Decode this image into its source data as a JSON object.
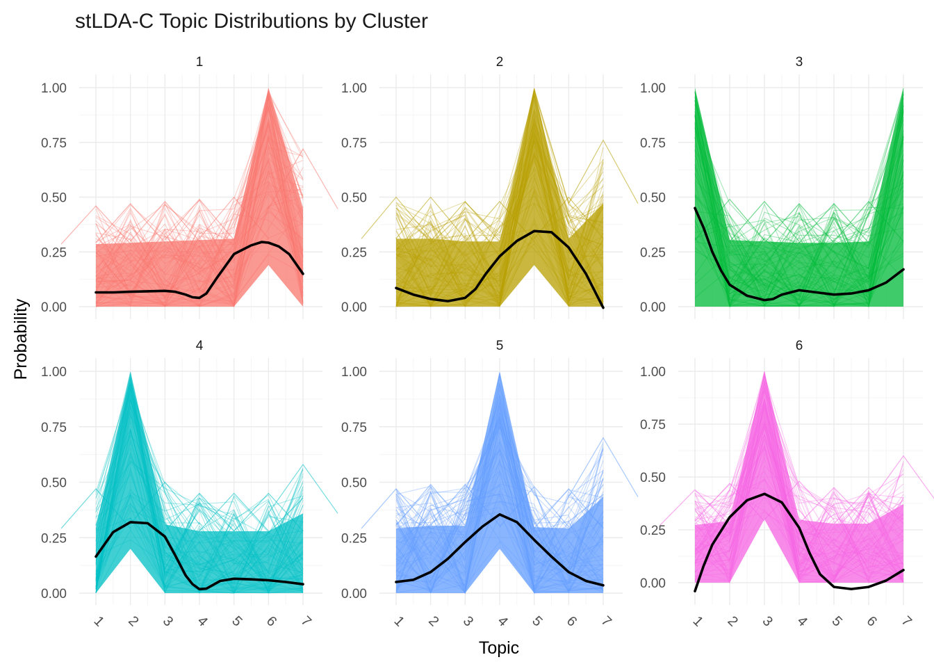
{
  "chart_data": {
    "type": "line",
    "title": "stLDA-C Topic Distributions by Cluster",
    "xlabel": "Topic",
    "ylabel": "Probability",
    "x_ticks": [
      "1",
      "2",
      "3",
      "4",
      "5",
      "6",
      "7"
    ],
    "y_ticks": [
      "0.00",
      "0.25",
      "0.50",
      "0.75",
      "1.00"
    ],
    "grid": true,
    "legend": "none",
    "facets": [
      {
        "cluster": "1",
        "color": "#F8766D",
        "ylim": [
          0,
          1
        ],
        "band_max": [
          0.46,
          0.47,
          0.48,
          0.49,
          0.5,
          1.0,
          0.72
        ],
        "band_min": [
          0.0,
          0.0,
          0.0,
          0.0,
          0.0,
          0.19,
          0.0
        ],
        "smooth": {
          "x": [
            1,
            1.5,
            2,
            2.5,
            3,
            3.3,
            3.6,
            3.8,
            4,
            4.2,
            4.5,
            5,
            5.5,
            5.8,
            6,
            6.3,
            6.6,
            7
          ],
          "y": [
            0.065,
            0.065,
            0.068,
            0.07,
            0.072,
            0.068,
            0.055,
            0.043,
            0.04,
            0.06,
            0.13,
            0.24,
            0.28,
            0.295,
            0.292,
            0.275,
            0.24,
            0.15
          ]
        }
      },
      {
        "cluster": "2",
        "color": "#B79F00",
        "ylim": [
          0,
          1
        ],
        "band_max": [
          0.5,
          0.5,
          0.48,
          0.48,
          1.0,
          0.5,
          0.76
        ],
        "band_min": [
          0.0,
          0.0,
          0.0,
          0.0,
          0.19,
          0.0,
          0.0
        ],
        "smooth": {
          "x": [
            1,
            1.5,
            2,
            2.5,
            3,
            3.3,
            3.6,
            4,
            4.5,
            5,
            5.5,
            6,
            6.5,
            7
          ],
          "y": [
            0.085,
            0.055,
            0.035,
            0.025,
            0.04,
            0.08,
            0.15,
            0.23,
            0.3,
            0.345,
            0.34,
            0.27,
            0.15,
            -0.005
          ]
        }
      },
      {
        "cluster": "3",
        "color": "#00BA38",
        "ylim": [
          0,
          1
        ],
        "band_max": [
          1.0,
          0.49,
          0.48,
          0.47,
          0.47,
          0.48,
          1.0
        ],
        "band_min": [
          0.0,
          0.0,
          0.0,
          0.0,
          0.0,
          0.0,
          0.0
        ],
        "smooth": {
          "x": [
            1,
            1.25,
            1.5,
            1.75,
            2,
            2.5,
            3,
            3.25,
            3.5,
            4,
            4.5,
            5,
            5.5,
            6,
            6.5,
            7
          ],
          "y": [
            0.45,
            0.36,
            0.25,
            0.165,
            0.1,
            0.05,
            0.03,
            0.035,
            0.055,
            0.075,
            0.065,
            0.055,
            0.06,
            0.075,
            0.11,
            0.17
          ]
        }
      },
      {
        "cluster": "4",
        "color": "#00BFC4",
        "ylim": [
          0,
          1
        ],
        "band_max": [
          0.47,
          1.0,
          0.5,
          0.45,
          0.45,
          0.45,
          0.58
        ],
        "band_min": [
          0.0,
          0.2,
          0.0,
          0.0,
          0.0,
          0.0,
          0.0
        ],
        "smooth": {
          "x": [
            1,
            1.5,
            2,
            2.5,
            3,
            3.3,
            3.6,
            3.8,
            4,
            4.2,
            4.6,
            5,
            5.5,
            6,
            6.5,
            7
          ],
          "y": [
            0.165,
            0.275,
            0.32,
            0.315,
            0.255,
            0.17,
            0.08,
            0.04,
            0.018,
            0.02,
            0.055,
            0.065,
            0.062,
            0.058,
            0.05,
            0.04
          ]
        }
      },
      {
        "cluster": "5",
        "color": "#619CFF",
        "ylim": [
          0,
          1
        ],
        "band_max": [
          0.47,
          0.49,
          0.49,
          1.0,
          0.48,
          0.47,
          0.7
        ],
        "band_min": [
          0.0,
          0.0,
          0.0,
          0.2,
          0.0,
          0.0,
          0.0
        ],
        "smooth": {
          "x": [
            1,
            1.5,
            2,
            2.5,
            3,
            3.5,
            4,
            4.5,
            5,
            5.5,
            6,
            6.5,
            7
          ],
          "y": [
            0.05,
            0.06,
            0.095,
            0.155,
            0.23,
            0.3,
            0.355,
            0.32,
            0.24,
            0.165,
            0.095,
            0.055,
            0.035
          ]
        }
      },
      {
        "cluster": "6",
        "color": "#F564E3",
        "ylim": [
          -0.05,
          1
        ],
        "band_max": [
          0.44,
          0.47,
          1.0,
          0.48,
          0.45,
          0.45,
          0.6
        ],
        "band_min": [
          0.0,
          0.0,
          0.3,
          0.0,
          0.0,
          0.0,
          0.0
        ],
        "smooth": {
          "x": [
            1,
            1.25,
            1.5,
            2,
            2.5,
            3,
            3.5,
            4,
            4.3,
            4.6,
            5,
            5.5,
            6,
            6.5,
            7
          ],
          "y": [
            -0.04,
            0.08,
            0.18,
            0.31,
            0.39,
            0.42,
            0.38,
            0.26,
            0.14,
            0.04,
            -0.02,
            -0.03,
            -0.02,
            0.01,
            0.06
          ]
        }
      }
    ]
  }
}
